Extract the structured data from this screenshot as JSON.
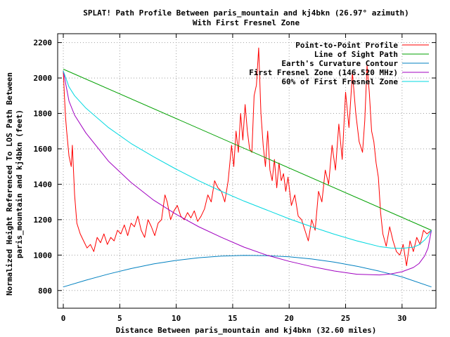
{
  "chart_data": {
    "type": "line",
    "title": "SPLAT! Path Profile Between paris_mountain and kj4bkn (26.97° azimuth)",
    "subtitle": "With First Fresnel Zone",
    "xlabel": "Distance Between paris_mountain and kj4bkn (32.60 miles)",
    "ylabel_lines": [
      "Normalized Height Referenced To LOS Path Between",
      "paris_mountain and kj4bkn (feet)"
    ],
    "xlim": [
      -0.5,
      33
    ],
    "ylim": [
      700,
      2250
    ],
    "xticks": [
      "0",
      "5",
      "10",
      "15",
      "20",
      "25",
      "30"
    ],
    "yticks": [
      "800",
      "1000",
      "1200",
      "1400",
      "1600",
      "1800",
      "2000",
      "2200"
    ],
    "grid": true,
    "legend_position": "top-right",
    "series": [
      {
        "name": "Point-to-Point Profile",
        "color": "#ff0000",
        "x": [
          0,
          0.1,
          0.2,
          0.3,
          0.5,
          0.7,
          0.8,
          0.9,
          1.0,
          1.2,
          1.5,
          1.8,
          2.1,
          2.4,
          2.7,
          3.0,
          3.3,
          3.6,
          3.9,
          4.2,
          4.5,
          4.8,
          5.1,
          5.4,
          5.7,
          6.0,
          6.3,
          6.6,
          6.9,
          7.2,
          7.5,
          7.8,
          8.1,
          8.4,
          8.7,
          9.0,
          9.2,
          9.5,
          9.8,
          10.1,
          10.4,
          10.7,
          11.0,
          11.3,
          11.6,
          11.9,
          12.2,
          12.5,
          12.8,
          13.1,
          13.4,
          13.7,
          14.0,
          14.3,
          14.6,
          14.9,
          15.1,
          15.3,
          15.5,
          15.7,
          15.9,
          16.1,
          16.3,
          16.5,
          16.7,
          16.9,
          17.1,
          17.3,
          17.5,
          17.7,
          17.9,
          18.1,
          18.3,
          18.5,
          18.7,
          18.9,
          19.1,
          19.3,
          19.5,
          19.7,
          19.9,
          20.2,
          20.5,
          20.8,
          21.1,
          21.4,
          21.7,
          22.0,
          22.3,
          22.6,
          22.9,
          23.2,
          23.5,
          23.8,
          24.1,
          24.4,
          24.7,
          25.0,
          25.3,
          25.6,
          25.9,
          26.2,
          26.5,
          26.7,
          26.9,
          27.1,
          27.3,
          27.5,
          27.7,
          27.9,
          28.1,
          28.3,
          28.6,
          28.9,
          29.2,
          29.5,
          29.8,
          30.1,
          30.4,
          30.7,
          31.0,
          31.3,
          31.6,
          31.9,
          32.2,
          32.6
        ],
        "values": [
          2040,
          1900,
          1780,
          1700,
          1560,
          1500,
          1620,
          1480,
          1340,
          1180,
          1120,
          1080,
          1040,
          1060,
          1020,
          1100,
          1070,
          1120,
          1060,
          1100,
          1080,
          1140,
          1120,
          1170,
          1110,
          1180,
          1160,
          1220,
          1140,
          1100,
          1200,
          1160,
          1110,
          1180,
          1200,
          1340,
          1300,
          1200,
          1250,
          1280,
          1220,
          1200,
          1240,
          1210,
          1250,
          1190,
          1220,
          1260,
          1340,
          1300,
          1420,
          1380,
          1360,
          1300,
          1420,
          1620,
          1500,
          1700,
          1580,
          1800,
          1650,
          1850,
          1700,
          1600,
          1580,
          1900,
          1960,
          2170,
          1800,
          1620,
          1500,
          1700,
          1480,
          1420,
          1540,
          1380,
          1520,
          1420,
          1460,
          1360,
          1440,
          1280,
          1340,
          1220,
          1200,
          1140,
          1080,
          1200,
          1140,
          1360,
          1300,
          1480,
          1400,
          1620,
          1480,
          1740,
          1540,
          1920,
          1720,
          2030,
          1800,
          1640,
          1580,
          1760,
          2070,
          1920,
          1700,
          1640,
          1520,
          1440,
          1240,
          1120,
          1050,
          1160,
          1080,
          1020,
          1000,
          1060,
          940,
          1080,
          1020,
          1100,
          1060,
          1140,
          1120,
          1140
        ]
      },
      {
        "name": "Line of Sight Path",
        "color": "#00a000",
        "x": [
          0,
          32.6
        ],
        "values": [
          2050,
          1140
        ]
      },
      {
        "name": "Earth's Curvature Contour",
        "color": "#0080c0",
        "x": [
          0,
          2,
          4,
          6,
          8,
          10,
          12,
          14,
          16,
          18,
          20,
          22,
          24,
          26,
          28,
          30,
          32.6
        ],
        "values": [
          820,
          858,
          893,
          924,
          950,
          970,
          985,
          994,
          998,
          997,
          990,
          978,
          960,
          937,
          909,
          877,
          820
        ]
      },
      {
        "name": "First Fresnel Zone (146.520 MHz)",
        "color": "#a000c0",
        "x": [
          0,
          0.5,
          1,
          2,
          4,
          6,
          8,
          10,
          12,
          14,
          16,
          18,
          20,
          22,
          24,
          26,
          28,
          29,
          30,
          31,
          31.5,
          32,
          32.3,
          32.6
        ],
        "values": [
          2040,
          1870,
          1790,
          1690,
          1530,
          1410,
          1310,
          1230,
          1160,
          1100,
          1045,
          1000,
          965,
          935,
          910,
          892,
          888,
          893,
          906,
          930,
          952,
          995,
          1040,
          1140
        ]
      },
      {
        "name": "60% of First Fresnel Zone",
        "color": "#00d8e0",
        "x": [
          0,
          0.5,
          1,
          2,
          4,
          6,
          8,
          10,
          12,
          14,
          16,
          18,
          20,
          22,
          24,
          26,
          28,
          29,
          30,
          31,
          31.5,
          32,
          32.3,
          32.6
        ],
        "values": [
          2040,
          1950,
          1900,
          1830,
          1720,
          1630,
          1555,
          1485,
          1420,
          1360,
          1305,
          1255,
          1205,
          1160,
          1118,
          1080,
          1048,
          1040,
          1038,
          1045,
          1058,
          1085,
          1108,
          1140
        ]
      }
    ]
  }
}
